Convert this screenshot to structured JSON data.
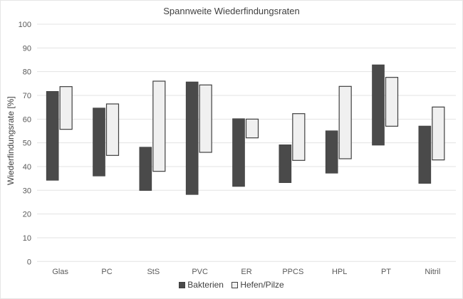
{
  "chart_data": {
    "type": "bar",
    "subtype": "floating-range",
    "title": "Spannweite Wiederfindungsraten",
    "xlabel": "",
    "ylabel": "Wiederfindungsrate [%]",
    "ylim": [
      0,
      100
    ],
    "yticks": [
      0,
      10,
      20,
      30,
      40,
      50,
      60,
      70,
      80,
      90,
      100
    ],
    "grid": true,
    "legend_position": "bottom",
    "categories": [
      "Glas",
      "PC",
      "StS",
      "PVC",
      "ER",
      "PPCS",
      "HPL",
      "PT",
      "Nitril"
    ],
    "series": [
      {
        "name": "Bakterien",
        "color": "#4a4a4a",
        "min": [
          34.2,
          36.0,
          29.9,
          28.2,
          31.6,
          33.2,
          37.2,
          49.0,
          32.9
        ],
        "max": [
          71.7,
          64.7,
          48.2,
          75.7,
          60.2,
          49.2,
          55.1,
          82.9,
          57.1
        ]
      },
      {
        "name": "Hefen/Pilze",
        "color": "#f0f0f0",
        "min": [
          55.7,
          44.7,
          38.0,
          46.0,
          52.1,
          42.6,
          43.3,
          57.0,
          42.8
        ],
        "max": [
          73.7,
          66.4,
          76.0,
          74.4,
          60.0,
          62.3,
          73.8,
          77.6,
          65.1
        ]
      }
    ]
  }
}
